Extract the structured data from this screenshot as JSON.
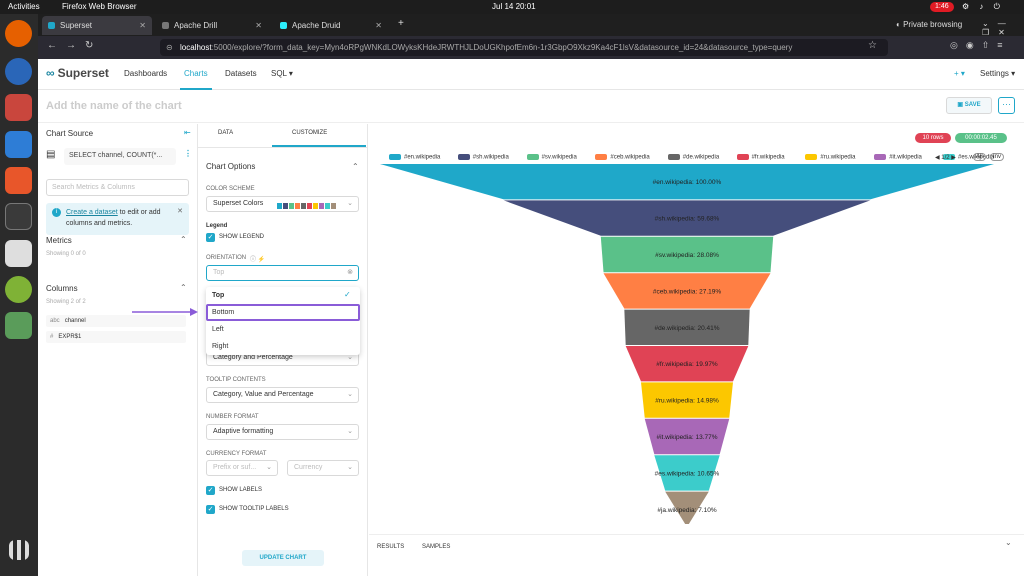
{
  "os": {
    "activities": "Activities",
    "app_name": "Firefox Web Browser",
    "clock": "Jul 14  20:01",
    "recording": "1:46"
  },
  "browser": {
    "tabs": [
      {
        "label": "Superset",
        "active": true,
        "color": "#20a7c9"
      },
      {
        "label": "Apache Drill",
        "active": false,
        "color": "#777777"
      },
      {
        "label": "Apache Druid",
        "active": false,
        "color": "#2ceefb"
      }
    ],
    "private": "Private browsing",
    "url_host": "localhost",
    "url_rest": ":5000/explore/?form_data_key=Myn4oRPgWNKdLOWyksKHdeJRWTHJLDoUGKhpofEm6n-1r3GbpO9Xkz9Ka4cF1lsV&datasource_id=24&datasource_type=query"
  },
  "header": {
    "logo": "Superset",
    "nav": [
      "Dashboards",
      "Charts",
      "Datasets",
      "SQL ▾"
    ],
    "active_nav": "Charts",
    "plus": "+ ▾",
    "settings": "Settings ▾"
  },
  "titlebar": {
    "title_placeholder": "Add the name of the chart",
    "save": "SAVE",
    "more": "···"
  },
  "source": {
    "title": "Chart Source",
    "dataset": "SELECT channel, COUNT(*...",
    "search_placeholder": "Search Metrics & Columns",
    "info_link": "Create a dataset",
    "info_text": " to edit or add columns and metrics.",
    "metrics_title": "Metrics",
    "metrics_sub": "Showing 0 of 0",
    "columns_title": "Columns",
    "columns_sub": "Showing 2 of 2",
    "columns": [
      {
        "type": "abc",
        "name": "channel"
      },
      {
        "type": "#",
        "name": "EXPR$1"
      }
    ]
  },
  "controls": {
    "tabs": [
      "DATA",
      "CUSTOMIZE"
    ],
    "section": "Chart Options",
    "color_scheme_label": "COLOR SCHEME",
    "color_scheme": "Superset Colors",
    "scheme_swatches": [
      "#1fa8c9",
      "#454e7c",
      "#5ac189",
      "#ff7f44",
      "#666666",
      "#e04355",
      "#fcc700",
      "#a868b7",
      "#3ccccb",
      "#a38f79"
    ],
    "legend_heading": "Legend",
    "show_legend": "SHOW LEGEND",
    "orientation_label": "ORIENTATION",
    "orientation_value": "Top",
    "orientation_options": [
      "Top",
      "Bottom",
      "Left",
      "Right"
    ],
    "label_contents": "Category and Percentage",
    "tooltip_label": "TOOLTIP CONTENTS",
    "tooltip_value": "Category, Value and Percentage",
    "number_format_label": "NUMBER FORMAT",
    "number_format": "Adaptive formatting",
    "currency_label": "CURRENCY FORMAT",
    "currency_prefix": "Prefix or suf...",
    "currency": "Currency",
    "show_labels": "SHOW LABELS",
    "show_tooltip_labels": "SHOW TOOLTIP LABELS",
    "update": "UPDATE CHART"
  },
  "chart_header": {
    "rows": "10 rows",
    "timer": "00:00:02.45"
  },
  "bottom_tabs": [
    "RESULTS",
    "SAMPLES"
  ],
  "chart_data": {
    "type": "funnel",
    "categories": [
      "#en.wikipedia",
      "#sh.wikipedia",
      "#sv.wikipedia",
      "#ceb.wikipedia",
      "#de.wikipedia",
      "#fr.wikipedia",
      "#ru.wikipedia",
      "#it.wikipedia",
      "#es.wikipedia",
      "#ja.wikipedia"
    ],
    "values": [
      100.0,
      59.68,
      28.08,
      27.19,
      20.41,
      19.97,
      14.98,
      13.77,
      10.65,
      7.1
    ],
    "labels": [
      "#en.wikipedia: 100.00%",
      "#sh.wikipedia: 59.68%",
      "#sv.wikipedia: 28.08%",
      "#ceb.wikipedia: 27.19%",
      "#de.wikipedia: 20.41%",
      "#fr.wikipedia: 19.97%",
      "#ru.wikipedia: 14.98%",
      "#it.wikipedia: 13.77%",
      "#es.wikipedia: 10.65%",
      "#ja.wikipedia: 7.10%"
    ],
    "colors": [
      "#1fa8c9",
      "#454e7c",
      "#5ac189",
      "#ff7f44",
      "#666666",
      "#e04355",
      "#fcc700",
      "#a868b7",
      "#3ccccb",
      "#a38f79"
    ],
    "legend": {
      "placement": "top",
      "visible_entries": 9,
      "page": "1/2",
      "all": "All",
      "inv": "Inv"
    }
  }
}
